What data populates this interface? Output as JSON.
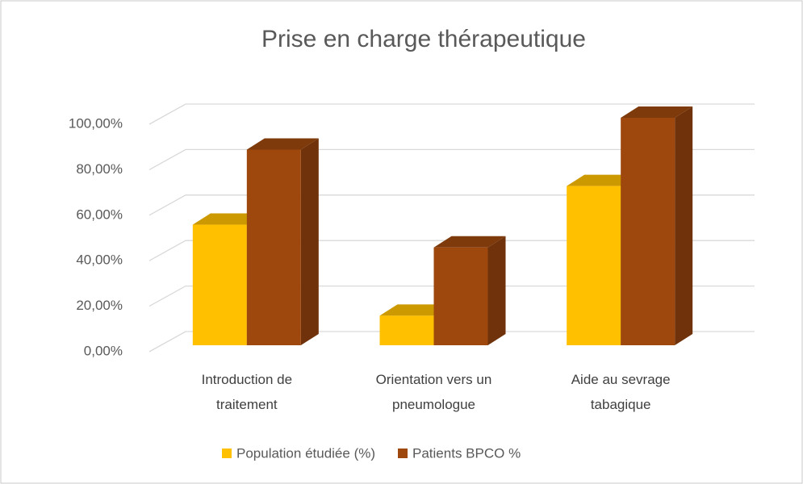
{
  "chart_data": {
    "type": "bar3d",
    "title": "Prise en charge thérapeutique",
    "categories": [
      "Introduction de traitement",
      "Orientation vers un pneumologue",
      "Aide au sevrage tabagique"
    ],
    "series": [
      {
        "name": "Population étudiée (%)",
        "color": "#FFC000",
        "values": [
          53,
          13,
          70
        ]
      },
      {
        "name": "Patients BPCO %",
        "color": "#9E480E",
        "values": [
          86,
          43,
          100
        ]
      }
    ],
    "ylim": [
      0,
      100
    ],
    "yticks": [
      {
        "value": 0,
        "label": "0,00%"
      },
      {
        "value": 20,
        "label": "20,00%"
      },
      {
        "value": 40,
        "label": "40,00%"
      },
      {
        "value": 60,
        "label": "60,00%"
      },
      {
        "value": 80,
        "label": "80,00%"
      },
      {
        "value": 100,
        "label": "100,00%"
      }
    ],
    "grid": true,
    "legend": "bottom"
  }
}
